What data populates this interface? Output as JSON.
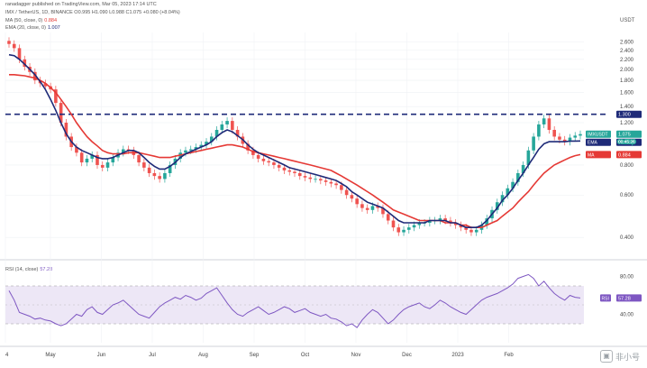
{
  "header": {
    "published": "ranadagger published on TradingView.com, Mar 05, 2023 17:14 UTC",
    "symbol_line": "IMX / TetherUS, 1D, BINANCE  O0.995  H1.090  L0.988  C1.075  +0.080 (+8.04%)",
    "ma_label": "MA (50, close, 0)",
    "ma_value": "0.884",
    "ema_label": "EMA (20, close, 0)",
    "ema_value": "1.007",
    "rsi_label": "RSI (14, close)",
    "rsi_value": "57.28"
  },
  "colors": {
    "candle_up": "#26a69a",
    "candle_down": "#ef5350",
    "ema": "#1e2a78",
    "ma": "#e53935",
    "resistance": "#1e2a78",
    "rsi_line": "#7e57c2",
    "rsi_band": "#ede7f6"
  },
  "watermark": "非小号",
  "chart_data": [
    {
      "type": "candlestick",
      "currency_label": "USDT",
      "y_scale": "log",
      "ylim": [
        0.34,
        2.75
      ],
      "y_ticks": [
        "2.600",
        "2.400",
        "2.200",
        "2.000",
        "1.800",
        "1.600",
        "1.400",
        "1.200",
        "1.000",
        "0.800",
        "0.600",
        "0.400"
      ],
      "y_tick_values": [
        2.6,
        2.4,
        2.2,
        2.0,
        1.8,
        1.6,
        1.4,
        1.2,
        1.0,
        0.8,
        0.6,
        0.4
      ],
      "x_ticks": [
        "4",
        "May",
        "Jun",
        "Jul",
        "Aug",
        "Sep",
        "Oct",
        "Nov",
        "Dec",
        "2023",
        "Feb"
      ],
      "resistance": {
        "value": 1.3,
        "label": "1.300"
      },
      "price_tags": [
        {
          "name": "IMXUSDT",
          "value": 1.075,
          "label": "1.075"
        },
        {
          "name": "EMA",
          "value": 1.007,
          "label": "1.007"
        },
        {
          "name": "MA",
          "value": 0.884,
          "label": "0.884"
        }
      ],
      "price_tag_note": "00:45:26",
      "close_series": [
        2.55,
        2.45,
        2.2,
        2.05,
        1.95,
        1.8,
        1.75,
        1.7,
        1.65,
        1.45,
        1.2,
        1.05,
        0.95,
        0.9,
        0.82,
        0.85,
        0.88,
        0.8,
        0.78,
        0.82,
        0.86,
        0.9,
        0.93,
        0.92,
        0.88,
        0.82,
        0.78,
        0.74,
        0.72,
        0.7,
        0.74,
        0.8,
        0.85,
        0.9,
        0.92,
        0.93,
        0.95,
        0.97,
        1.0,
        1.05,
        1.12,
        1.18,
        1.22,
        1.12,
        1.05,
        0.98,
        0.92,
        0.88,
        0.85,
        0.83,
        0.82,
        0.8,
        0.78,
        0.76,
        0.75,
        0.74,
        0.72,
        0.71,
        0.7,
        0.7,
        0.69,
        0.68,
        0.67,
        0.66,
        0.63,
        0.6,
        0.58,
        0.55,
        0.53,
        0.52,
        0.54,
        0.53,
        0.5,
        0.47,
        0.44,
        0.42,
        0.43,
        0.44,
        0.45,
        0.46,
        0.46,
        0.47,
        0.47,
        0.48,
        0.47,
        0.46,
        0.45,
        0.44,
        0.43,
        0.42,
        0.43,
        0.45,
        0.48,
        0.52,
        0.56,
        0.6,
        0.64,
        0.68,
        0.74,
        0.8,
        0.92,
        1.05,
        1.18,
        1.25,
        1.12,
        1.05,
        1.02,
        1.0,
        1.04,
        1.06,
        1.075
      ],
      "ema20_series": [
        2.3,
        2.28,
        2.2,
        2.1,
        2.0,
        1.9,
        1.78,
        1.65,
        1.5,
        1.35,
        1.2,
        1.08,
        1.0,
        0.95,
        0.92,
        0.9,
        0.88,
        0.86,
        0.85,
        0.85,
        0.86,
        0.88,
        0.9,
        0.92,
        0.92,
        0.9,
        0.86,
        0.82,
        0.79,
        0.77,
        0.77,
        0.79,
        0.82,
        0.86,
        0.89,
        0.91,
        0.93,
        0.95,
        0.97,
        1.0,
        1.05,
        1.09,
        1.12,
        1.1,
        1.06,
        1.02,
        0.97,
        0.93,
        0.9,
        0.88,
        0.86,
        0.84,
        0.82,
        0.8,
        0.78,
        0.77,
        0.76,
        0.75,
        0.74,
        0.73,
        0.72,
        0.71,
        0.7,
        0.69,
        0.67,
        0.65,
        0.62,
        0.6,
        0.58,
        0.56,
        0.55,
        0.54,
        0.53,
        0.51,
        0.49,
        0.47,
        0.46,
        0.46,
        0.46,
        0.46,
        0.46,
        0.47,
        0.47,
        0.47,
        0.47,
        0.46,
        0.46,
        0.45,
        0.44,
        0.44,
        0.44,
        0.45,
        0.47,
        0.5,
        0.53,
        0.57,
        0.6,
        0.64,
        0.69,
        0.74,
        0.8,
        0.86,
        0.93,
        0.98,
        1.0,
        1.0,
        1.0,
        1.0,
        1.005,
        1.006,
        1.007
      ],
      "ma50_series": [
        1.9,
        1.9,
        1.89,
        1.88,
        1.86,
        1.84,
        1.8,
        1.75,
        1.68,
        1.6,
        1.5,
        1.4,
        1.3,
        1.2,
        1.12,
        1.05,
        1.0,
        0.96,
        0.92,
        0.9,
        0.89,
        0.89,
        0.89,
        0.9,
        0.9,
        0.9,
        0.89,
        0.88,
        0.87,
        0.86,
        0.86,
        0.86,
        0.87,
        0.88,
        0.89,
        0.9,
        0.91,
        0.92,
        0.93,
        0.94,
        0.95,
        0.96,
        0.97,
        0.97,
        0.96,
        0.95,
        0.93,
        0.91,
        0.9,
        0.89,
        0.88,
        0.87,
        0.86,
        0.85,
        0.84,
        0.83,
        0.82,
        0.81,
        0.8,
        0.79,
        0.78,
        0.77,
        0.76,
        0.74,
        0.72,
        0.7,
        0.68,
        0.66,
        0.64,
        0.62,
        0.6,
        0.58,
        0.56,
        0.54,
        0.52,
        0.51,
        0.5,
        0.49,
        0.48,
        0.47,
        0.47,
        0.47,
        0.47,
        0.47,
        0.46,
        0.46,
        0.46,
        0.45,
        0.45,
        0.44,
        0.44,
        0.44,
        0.45,
        0.46,
        0.47,
        0.49,
        0.51,
        0.53,
        0.56,
        0.59,
        0.62,
        0.66,
        0.7,
        0.74,
        0.77,
        0.8,
        0.82,
        0.84,
        0.86,
        0.875,
        0.884
      ]
    },
    {
      "type": "line",
      "name": "RSI (14, close)",
      "ylim": [
        10,
        90
      ],
      "y_ticks": [
        "80.00",
        "40.00"
      ],
      "y_tick_values": [
        80,
        40
      ],
      "band": [
        30,
        70
      ],
      "mid": 50,
      "current": {
        "value": 57.28,
        "label": "57.28"
      },
      "values": [
        65,
        55,
        42,
        40,
        38,
        35,
        36,
        34,
        33,
        30,
        28,
        30,
        35,
        40,
        38,
        45,
        48,
        42,
        40,
        45,
        50,
        52,
        55,
        50,
        45,
        40,
        38,
        36,
        42,
        48,
        52,
        55,
        58,
        56,
        60,
        58,
        55,
        57,
        62,
        65,
        68,
        60,
        52,
        45,
        40,
        38,
        42,
        45,
        48,
        44,
        40,
        42,
        45,
        48,
        46,
        42,
        44,
        46,
        42,
        40,
        38,
        40,
        36,
        35,
        32,
        28,
        30,
        26,
        34,
        40,
        45,
        42,
        36,
        30,
        34,
        40,
        45,
        48,
        50,
        52,
        48,
        46,
        50,
        55,
        52,
        48,
        45,
        42,
        40,
        45,
        50,
        55,
        58,
        60,
        62,
        65,
        68,
        72,
        78,
        80,
        82,
        78,
        70,
        75,
        68,
        62,
        58,
        55,
        60,
        58,
        57.28
      ]
    }
  ]
}
